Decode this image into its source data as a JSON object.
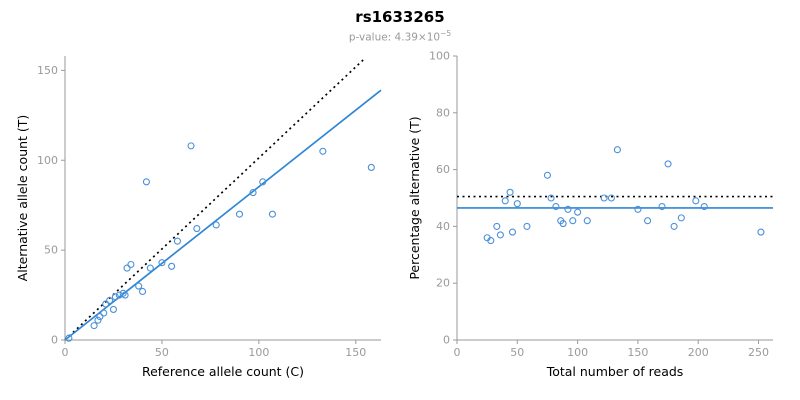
{
  "header": {
    "title": "rs1633265",
    "pvalue_base": "p-value: 4.39×10",
    "pvalue_exp": "−5"
  },
  "colors": {
    "point": "#4a90d9",
    "fit_line": "#2e86d5",
    "identity_line": "#000000",
    "axis": "#9a9a9a",
    "tick_label": "#9a9a9a",
    "axis_title": "#000000",
    "subtitle": "#9a9a9a"
  },
  "chart_data": [
    {
      "type": "scatter",
      "title": "",
      "xlabel": "Reference allele count (C)",
      "ylabel": "Alternative allele count (T)",
      "xlim": [
        0,
        163
      ],
      "ylim": [
        0,
        158
      ],
      "xticks": [
        0,
        50,
        100,
        150
      ],
      "yticks": [
        0,
        50,
        100,
        150
      ],
      "grid": false,
      "legend": "none",
      "points": [
        [
          2,
          1
        ],
        [
          15,
          8
        ],
        [
          17,
          11
        ],
        [
          18,
          13
        ],
        [
          20,
          15
        ],
        [
          21,
          20
        ],
        [
          23,
          22
        ],
        [
          25,
          17
        ],
        [
          26,
          24
        ],
        [
          28,
          25
        ],
        [
          30,
          26
        ],
        [
          31,
          25
        ],
        [
          32,
          40
        ],
        [
          34,
          42
        ],
        [
          38,
          30
        ],
        [
          40,
          27
        ],
        [
          42,
          88
        ],
        [
          44,
          40
        ],
        [
          50,
          43
        ],
        [
          55,
          41
        ],
        [
          58,
          55
        ],
        [
          65,
          108
        ],
        [
          68,
          62
        ],
        [
          78,
          64
        ],
        [
          90,
          70
        ],
        [
          97,
          82
        ],
        [
          102,
          88
        ],
        [
          107,
          70
        ],
        [
          133,
          105
        ],
        [
          158,
          96
        ]
      ],
      "lines": [
        {
          "name": "identity-line",
          "style": "dotted",
          "color": "#000000",
          "x1": 0,
          "y1": 0,
          "x2": 155,
          "y2": 157
        },
        {
          "name": "fit-line",
          "style": "solid",
          "color": "#2e86d5",
          "x1": 0,
          "y1": 0,
          "x2": 163,
          "y2": 139
        }
      ]
    },
    {
      "type": "scatter",
      "title": "",
      "xlabel": "Total number of reads",
      "ylabel": "Percentage alternative (T)",
      "xlim": [
        0,
        262
      ],
      "ylim": [
        0,
        100
      ],
      "xticks": [
        0,
        50,
        100,
        150,
        200,
        250
      ],
      "yticks": [
        0,
        20,
        40,
        60,
        80,
        100
      ],
      "grid": false,
      "legend": "none",
      "points": [
        [
          25,
          36
        ],
        [
          28,
          35
        ],
        [
          33,
          40
        ],
        [
          36,
          37
        ],
        [
          40,
          49
        ],
        [
          44,
          52
        ],
        [
          46,
          38
        ],
        [
          50,
          48
        ],
        [
          58,
          40
        ],
        [
          75,
          58
        ],
        [
          78,
          50
        ],
        [
          82,
          47
        ],
        [
          86,
          42
        ],
        [
          88,
          41
        ],
        [
          92,
          46
        ],
        [
          96,
          42
        ],
        [
          100,
          45
        ],
        [
          108,
          42
        ],
        [
          122,
          50
        ],
        [
          128,
          50
        ],
        [
          133,
          67
        ],
        [
          150,
          46
        ],
        [
          158,
          42
        ],
        [
          170,
          47
        ],
        [
          175,
          62
        ],
        [
          180,
          40
        ],
        [
          186,
          43
        ],
        [
          198,
          49
        ],
        [
          205,
          47
        ],
        [
          252,
          38
        ]
      ],
      "lines": [
        {
          "name": "expected-percentage-line",
          "style": "dotted",
          "color": "#000000",
          "x1": 0,
          "y1": 50.5,
          "x2": 262,
          "y2": 50.5
        },
        {
          "name": "mean-percentage-line",
          "style": "solid",
          "color": "#2e86d5",
          "x1": 0,
          "y1": 46.5,
          "x2": 262,
          "y2": 46.5
        }
      ]
    }
  ]
}
